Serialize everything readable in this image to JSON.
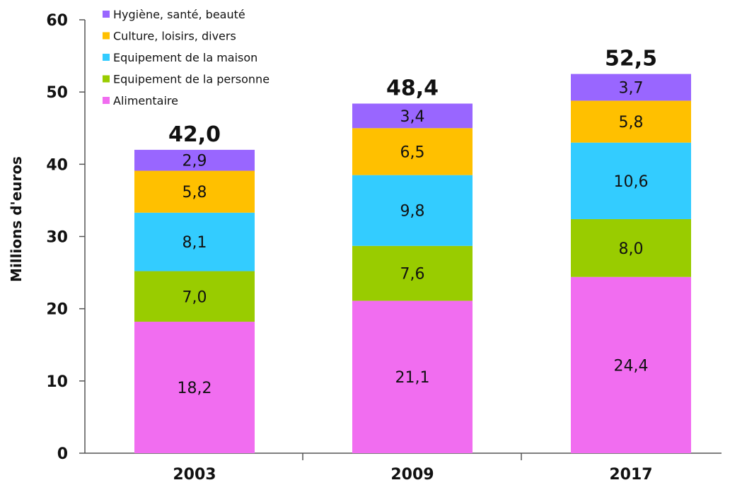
{
  "chart_data": {
    "type": "bar",
    "stacked": true,
    "categories": [
      "2003",
      "2009",
      "2017"
    ],
    "series": [
      {
        "name": "Alimentaire",
        "color": "#f16df0",
        "values": [
          18.2,
          21.1,
          24.4
        ],
        "labels": [
          "18,2",
          "21,1",
          "24,4"
        ]
      },
      {
        "name": "Equipement de la personne",
        "color": "#99cc00",
        "values": [
          7.0,
          7.6,
          8.0
        ],
        "labels": [
          "7,0",
          "7,6",
          "8,0"
        ]
      },
      {
        "name": "Equipement de la maison",
        "color": "#33ccff",
        "values": [
          8.1,
          9.8,
          10.6
        ],
        "labels": [
          "8,1",
          "9,8",
          "10,6"
        ]
      },
      {
        "name": "Culture, loisirs, divers",
        "color": "#ffc000",
        "values": [
          5.8,
          6.5,
          5.8
        ],
        "labels": [
          "5,8",
          "6,5",
          "5,8"
        ]
      },
      {
        "name": "Hygiène, santé, beauté",
        "color": "#9966ff",
        "values": [
          2.9,
          3.4,
          3.7
        ],
        "labels": [
          "2,9",
          "3,4",
          "3,7"
        ]
      }
    ],
    "totals": [
      42.0,
      48.4,
      52.5
    ],
    "total_labels": [
      "42,0",
      "48,4",
      "52,5"
    ],
    "ylabel": "Millions d'euros",
    "xlabel": "",
    "ylim": [
      0,
      60
    ],
    "yticks": [
      0,
      10,
      20,
      30,
      40,
      50,
      60
    ],
    "grid": false,
    "legend_position": "top-left",
    "legend_order": [
      "Hygiène, santé, beauté",
      "Culture, loisirs, divers",
      "Equipement de la maison",
      "Equipement de la personne",
      "Alimentaire"
    ]
  }
}
